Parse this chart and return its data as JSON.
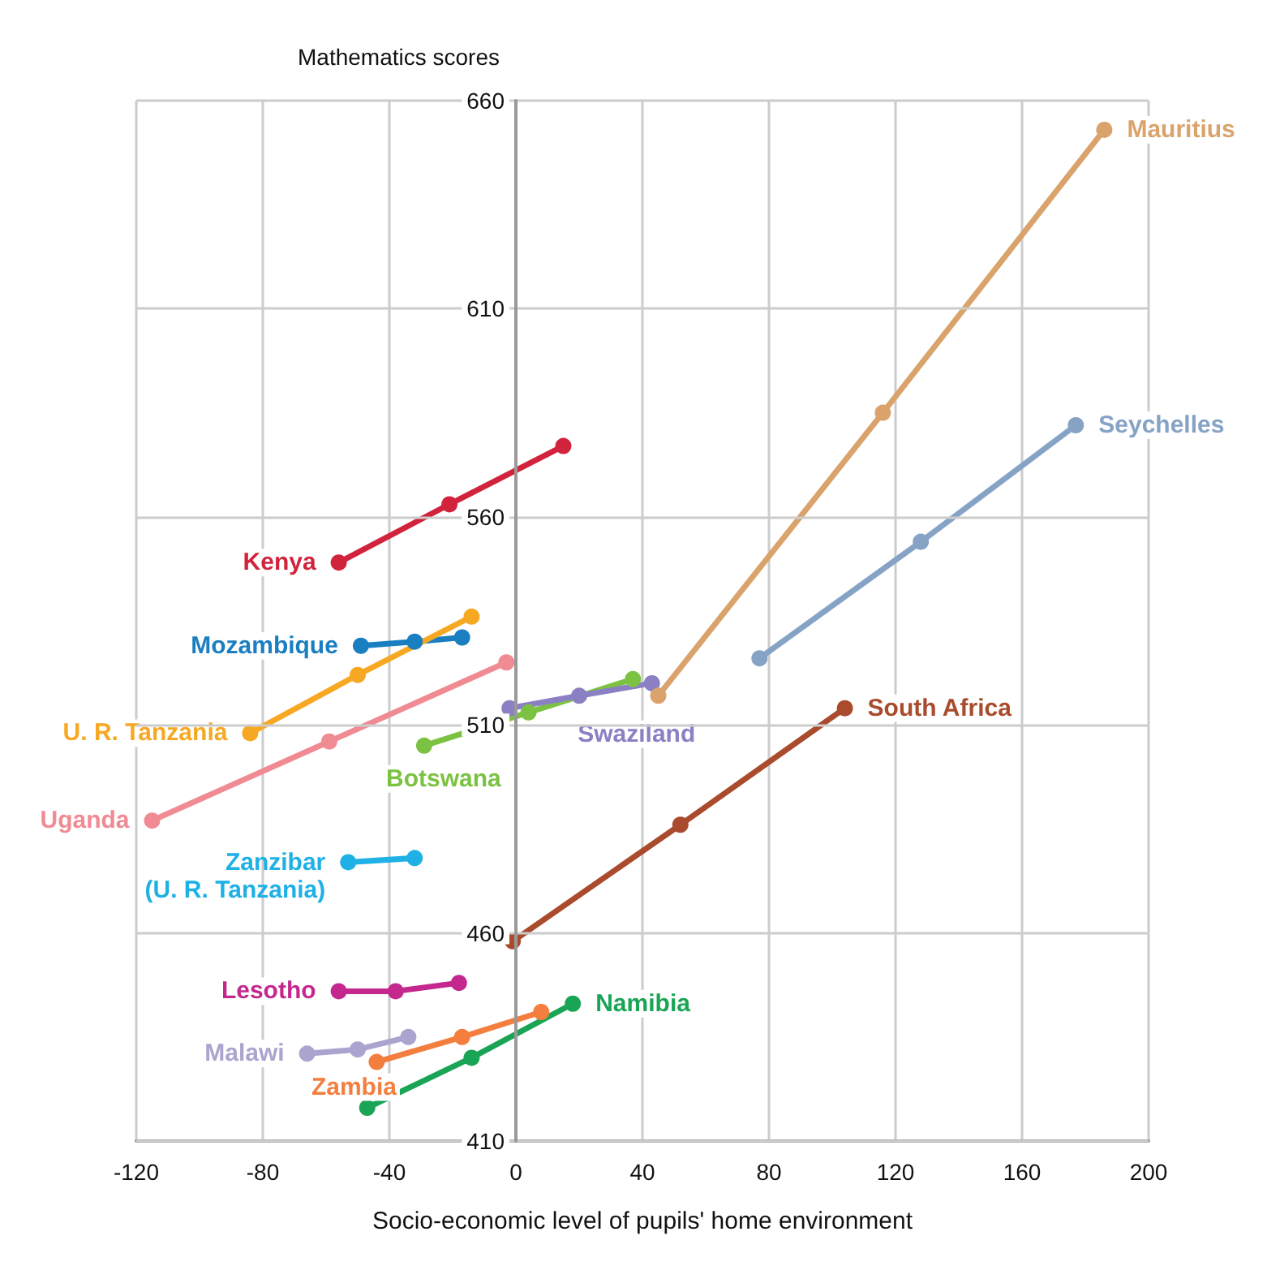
{
  "chart_data": {
    "type": "line",
    "xlabel": "Socio-economic level of pupils' home environment",
    "ylabel": "Mathematics scores",
    "xlim": [
      -120,
      200
    ],
    "xticks": [
      -120,
      -80,
      -40,
      0,
      40,
      80,
      120,
      160,
      200
    ],
    "ylim": [
      410,
      660
    ],
    "yticks": [
      410,
      460,
      510,
      560,
      610,
      660
    ],
    "grid": true,
    "legend": false,
    "marker": "circle",
    "line_style": "solid",
    "series": [
      {
        "name": "Kenya",
        "color": "#d2233c",
        "x": [
          -56,
          -21,
          15
        ],
        "values": [
          549,
          563,
          577
        ]
      },
      {
        "name": "Mozambique",
        "color": "#1a7fc1",
        "x": [
          -49,
          -32,
          -17
        ],
        "values": [
          529,
          530,
          531
        ]
      },
      {
        "name": "U. R. Tanzania",
        "color": "#f7a823",
        "x": [
          -84,
          -50,
          -14
        ],
        "values": [
          508,
          522,
          536
        ]
      },
      {
        "name": "Uganda",
        "color": "#f08a93",
        "x": [
          -115,
          -59,
          -3
        ],
        "values": [
          487,
          506,
          525
        ]
      },
      {
        "name": "Zanzibar (U. R. Tanzania)",
        "color": "#1fb0e6",
        "x": [
          -53,
          -32
        ],
        "values": [
          477,
          478
        ]
      },
      {
        "name": "Botswana",
        "color": "#7cc242",
        "x": [
          -29,
          4,
          37
        ],
        "values": [
          505,
          513,
          521
        ]
      },
      {
        "name": "Swaziland",
        "color": "#8b80c4",
        "x": [
          -2,
          20,
          43
        ],
        "values": [
          514,
          517,
          520
        ]
      },
      {
        "name": "Lesotho",
        "color": "#c4288e",
        "x": [
          -56,
          -38,
          -18
        ],
        "values": [
          446,
          446,
          448
        ]
      },
      {
        "name": "Malawi",
        "color": "#aba4cf",
        "x": [
          -66,
          -50,
          -34
        ],
        "values": [
          431,
          432,
          435
        ]
      },
      {
        "name": "Zambia",
        "color": "#f47e3e",
        "x": [
          -44,
          -17,
          8
        ],
        "values": [
          429,
          435,
          441
        ]
      },
      {
        "name": "Namibia",
        "color": "#1aa456",
        "x": [
          -47,
          -14,
          18
        ],
        "values": [
          418,
          430,
          443
        ]
      },
      {
        "name": "South Africa",
        "color": "#a94b2c",
        "x": [
          -1,
          52,
          104
        ],
        "values": [
          458,
          486,
          514
        ]
      },
      {
        "name": "Mauritius",
        "color": "#d9a36b",
        "x": [
          45,
          116,
          186
        ],
        "values": [
          517,
          585,
          653
        ]
      },
      {
        "name": "Seychelles",
        "color": "#86a3c6",
        "x": [
          77,
          128,
          177
        ],
        "values": [
          526,
          554,
          582
        ]
      }
    ]
  }
}
